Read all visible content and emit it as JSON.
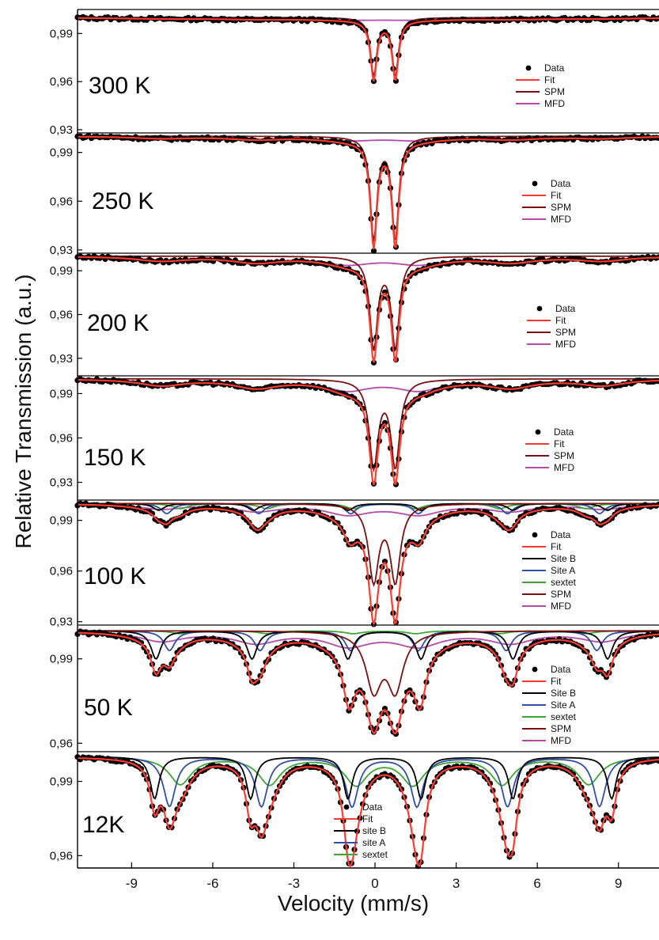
{
  "chart_data": {
    "type": "line",
    "xlabel": "Velocity (mm/s)",
    "ylabel": "Relative Transmission  (a.u.)",
    "xlim": [
      -11,
      10.5
    ],
    "xticks": [
      -9,
      -6,
      -3,
      0,
      3,
      6,
      9
    ],
    "x_tick_labels": [
      "-9",
      "-6",
      "-3",
      "0",
      "3",
      "6",
      "9"
    ],
    "panels": [
      {
        "temperature": "300 K",
        "ylim": [
          0.928,
          1.002
        ],
        "yticks": [
          0.99,
          0.96,
          0.93
        ],
        "y_tick_labels": [
          "0,99",
          "0,96",
          "0,93"
        ],
        "legend": [
          "Data",
          "Fit",
          "SPM",
          "MFD"
        ],
        "doublet": {
          "centers": [
            -0.05,
            0.75
          ],
          "depth": 0.037,
          "width": 0.28
        },
        "spm": {
          "centers": [
            -0.05,
            0.75
          ],
          "depth": 0.036,
          "width": 0.28
        },
        "mfd": {
          "depth": 0.001,
          "width": 4.0,
          "rel_depths": [
            0.6,
            0.8,
            1.0,
            1.0,
            0.8,
            0.6
          ]
        }
      },
      {
        "temperature": "250 K",
        "ylim": [
          0.928,
          1.002
        ],
        "yticks": [
          0.99,
          0.96,
          0.93
        ],
        "y_tick_labels": [
          "0,99",
          "0,96",
          "0,93"
        ],
        "legend": [
          "Data",
          "Fit",
          "SPM",
          "MFD"
        ],
        "doublet": {
          "centers": [
            -0.05,
            0.75
          ],
          "depth": 0.065,
          "width": 0.3
        },
        "spm": {
          "centers": [
            -0.05,
            0.75
          ],
          "depth": 0.063,
          "width": 0.3
        },
        "mfd": {
          "depth": 0.0025,
          "width": 2.5,
          "rel_depths": [
            0.5,
            0.7,
            0.9,
            0.9,
            0.7,
            0.5
          ]
        }
      },
      {
        "temperature": "200 K",
        "ylim": [
          0.918,
          1.002
        ],
        "yticks": [
          0.99,
          0.96,
          0.93
        ],
        "y_tick_labels": [
          "0,99",
          "0,96",
          "0,93"
        ],
        "legend": [
          "Data",
          "Fit",
          "SPM",
          "MFD"
        ],
        "doublet": {
          "centers": [
            -0.05,
            0.75
          ],
          "depth": 0.065,
          "width": 0.35
        },
        "spm": {
          "centers": [
            -0.05,
            0.75
          ],
          "depth": 0.062,
          "width": 0.35
        },
        "mfd": {
          "depth": 0.005,
          "width": 2.2,
          "rel_depths": [
            0.6,
            0.8,
            1.0,
            1.0,
            0.8,
            0.6
          ]
        }
      },
      {
        "temperature": "150 K",
        "ylim": [
          0.918,
          1.002
        ],
        "yticks": [
          0.99,
          0.96,
          0.93
        ],
        "y_tick_labels": [
          "0,99",
          "0,96",
          "0,93"
        ],
        "legend": [
          "Data",
          "Fit",
          "SPM",
          "MFD"
        ],
        "doublet": {
          "centers": [
            -0.05,
            0.75
          ],
          "depth": 0.062,
          "width": 0.4
        },
        "spm": {
          "centers": [
            -0.05,
            0.75
          ],
          "depth": 0.058,
          "width": 0.4
        },
        "mfd": {
          "depth": 0.007,
          "width": 2.0,
          "rel_depths": [
            0.6,
            0.8,
            1.0,
            1.0,
            0.8,
            0.6
          ]
        }
      },
      {
        "temperature": "100 K",
        "ylim": [
          0.928,
          1.002
        ],
        "yticks": [
          0.99,
          0.96,
          0.93
        ],
        "y_tick_labels": [
          "0,99",
          "0,96",
          "0,93"
        ],
        "legend": [
          "Data",
          "Fit",
          "Site B",
          "Site A",
          "sextet",
          "SPM",
          "MFD"
        ],
        "doublet": {
          "centers": [
            -0.05,
            0.75
          ],
          "depth": 0.06,
          "width": 0.45
        },
        "spm": {
          "centers": [
            -0.05,
            0.75
          ],
          "depth": 0.045,
          "width": 0.45
        },
        "site_b": {
          "lines": [
            -8.0,
            -4.5,
            -1.0,
            1.7,
            5.1,
            8.6
          ],
          "depth": 0.004,
          "width": 0.5
        },
        "site_a": {
          "lines": [
            -7.7,
            -4.3,
            -0.9,
            1.6,
            4.9,
            8.3
          ],
          "depth": 0.006,
          "width": 0.5
        },
        "sextet": {
          "lines": [
            -7.2,
            -4.0,
            -0.8,
            1.5,
            4.6,
            7.8
          ],
          "depth": 0.003,
          "width": 0.7
        },
        "mfd": {
          "depth": 0.006,
          "width": 2.0,
          "rel_depths": [
            0.5,
            0.7,
            1.0,
            1.0,
            0.7,
            0.5
          ]
        }
      },
      {
        "temperature": "50 K",
        "ylim": [
          0.957,
          1.002
        ],
        "yticks": [
          0.99,
          0.96
        ],
        "y_tick_labels": [
          "0,99",
          "0,96"
        ],
        "legend": [
          "Data",
          "Fit",
          "Site B",
          "Site A",
          "sextet",
          "SPM",
          "MFD"
        ],
        "doublet": {
          "centers": [
            -0.05,
            0.75
          ],
          "depth": 0.026,
          "width": 0.7
        },
        "spm": {
          "centers": [
            -0.05,
            0.75
          ],
          "depth": 0.02,
          "width": 0.7
        },
        "site_b": {
          "lines": [
            -8.1,
            -4.55,
            -1.0,
            1.7,
            5.1,
            8.6
          ],
          "depth": 0.01,
          "width": 0.45
        },
        "site_a": {
          "lines": [
            -7.6,
            -4.25,
            -0.9,
            1.6,
            4.85,
            8.2
          ],
          "depth": 0.007,
          "width": 0.5
        },
        "sextet": {
          "lines": [
            -7.2,
            -4.0,
            -0.8,
            1.5,
            4.6,
            7.8
          ],
          "depth": 0.001,
          "width": 0.8
        },
        "mfd": {
          "depth": 0.005,
          "width": 2.0,
          "rel_depths": [
            0.7,
            0.8,
            1.0,
            1.0,
            0.8,
            0.7
          ]
        }
      },
      {
        "temperature": "12K",
        "ylim": [
          0.955,
          1.002
        ],
        "yticks": [
          0.99,
          0.96
        ],
        "y_tick_labels": [
          "0,99",
          "0,96"
        ],
        "legend": [
          "Data",
          "Fit",
          "site B",
          "site A",
          "sextet"
        ],
        "site_b": {
          "lines": [
            -8.15,
            -4.6,
            -1.0,
            1.7,
            5.1,
            8.75
          ],
          "depth": 0.017,
          "width": 0.4
        },
        "site_a": {
          "lines": [
            -7.6,
            -4.2,
            -0.85,
            1.55,
            4.9,
            8.3
          ],
          "depth": 0.02,
          "width": 0.55
        },
        "sextet": {
          "lines": [
            -7.2,
            -3.9,
            -0.7,
            1.4,
            4.7,
            7.9
          ],
          "depth": 0.011,
          "width": 1.0
        }
      }
    ],
    "colors": {
      "data": "#000000",
      "fit": "#ff3b30",
      "site_b": "#000000",
      "site_a": "#2f4fa8",
      "sextet": "#3fa535",
      "spm": "#7a1010",
      "mfd": "#b54aa8"
    }
  }
}
